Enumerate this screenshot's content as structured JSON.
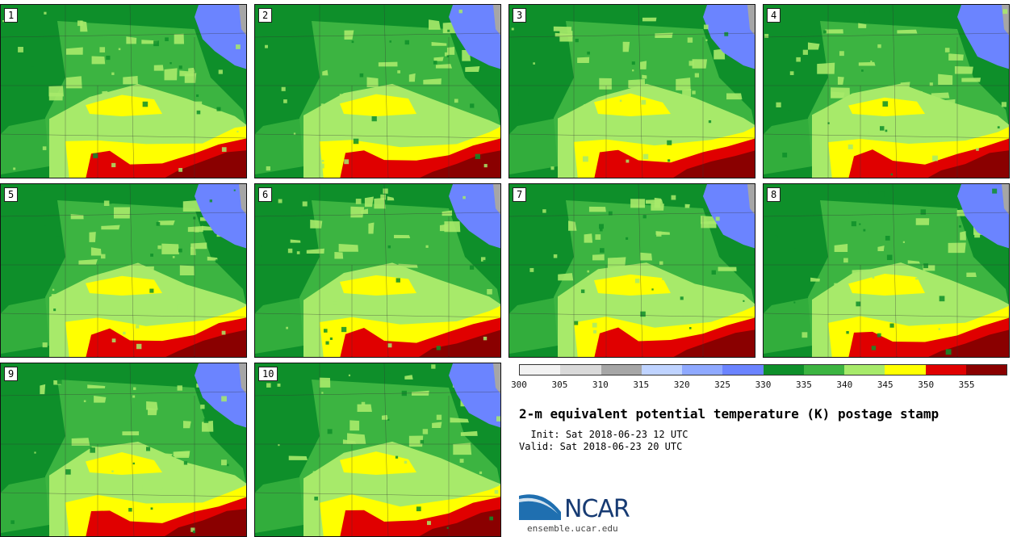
{
  "title": "2-m equivalent potential temperature (K) postage stamp",
  "init_label": "  Init:",
  "init_value": "Sat 2018-06-23 12 UTC",
  "valid_label": "Valid:",
  "valid_value": "Sat 2018-06-23 20 UTC",
  "org_name": "NCAR",
  "org_url": "ensemble.ucar.edu",
  "members": [
    "1",
    "2",
    "3",
    "4",
    "5",
    "6",
    "7",
    "8",
    "9",
    "10"
  ],
  "colorbar": {
    "colors": [
      "#f2f2f2",
      "#d9d9d9",
      "#a6a6a6",
      "#bfd3ff",
      "#8fa9ff",
      "#6b84ff",
      "#0e8f2a",
      "#3cb441",
      "#a7ea6a",
      "#ffff00",
      "#e00000",
      "#8a0000"
    ],
    "ticks": [
      "300",
      "305",
      "310",
      "315",
      "320",
      "325",
      "330",
      "335",
      "340",
      "345",
      "350",
      "355"
    ]
  },
  "legend_unit": "K",
  "map_colors": {
    "dark_green": "#0e8f2a",
    "mid_green": "#3cb441",
    "light_green": "#a7ea6a",
    "yellow": "#ffff00",
    "red": "#e00000",
    "dark_red": "#8a0000",
    "blue": "#6b84ff",
    "light_blue": "#bfd3ff",
    "gray": "#a6a6a6"
  }
}
